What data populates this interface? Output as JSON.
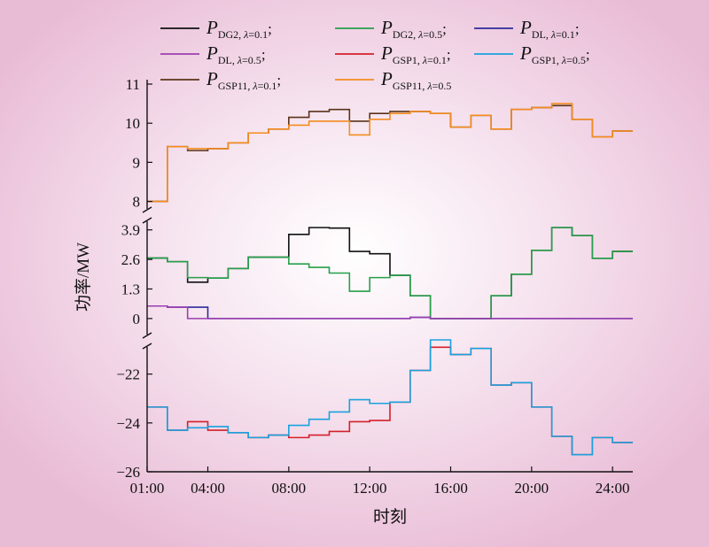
{
  "chart_data": {
    "type": "line",
    "step": true,
    "xlabel": "时刻",
    "ylabel": "功率/MW",
    "x_ticks": [
      "01:00",
      "04:00",
      "08:00",
      "12:00",
      "16:00",
      "20:00",
      "24:00"
    ],
    "x_tick_hours": [
      1,
      4,
      8,
      12,
      16,
      20,
      24
    ],
    "xlim": [
      1,
      25
    ],
    "y_axis_break": true,
    "panels": [
      {
        "id": "top",
        "ylim": [
          7.9,
          11
        ],
        "y_ticks": [
          "8",
          "9",
          "10",
          "11"
        ],
        "y_tick_values": [
          8,
          9,
          10,
          11
        ]
      },
      {
        "id": "mid",
        "ylim": [
          -0.2,
          4.2
        ],
        "y_ticks": [
          "0",
          "1.3",
          "2.6",
          "3.9"
        ],
        "y_tick_values": [
          0,
          1.3,
          2.6,
          3.9
        ]
      },
      {
        "id": "bot",
        "ylim": [
          -26,
          -20.6
        ],
        "y_ticks": [
          "−26",
          "−24",
          "−22"
        ],
        "y_tick_values": [
          -26,
          -24,
          -22
        ]
      }
    ],
    "hours": [
      1,
      2,
      3,
      4,
      5,
      6,
      7,
      8,
      9,
      10,
      11,
      12,
      13,
      14,
      15,
      16,
      17,
      18,
      19,
      20,
      21,
      22,
      23,
      24
    ],
    "series": [
      {
        "key": "dg2_01",
        "sym": "P",
        "sub": "DG2, ",
        "lam": "λ",
        "rest": "=0.1",
        "sep": ";",
        "color": "#111111",
        "panel": "mid",
        "values": [
          2.66,
          2.5,
          1.6,
          1.78,
          2.2,
          2.7,
          2.7,
          3.7,
          4.0,
          3.98,
          2.95,
          2.85,
          1.9,
          1.0,
          0,
          0,
          0,
          1.0,
          1.95,
          3.0,
          4.0,
          3.65,
          2.65,
          2.95
        ]
      },
      {
        "key": "dg2_05",
        "sym": "P",
        "sub": "DG2, ",
        "lam": "λ",
        "rest": "=0.5",
        "sep": ";",
        "color": "#27a04a",
        "panel": "mid",
        "values": [
          2.66,
          2.5,
          1.8,
          1.78,
          2.2,
          2.7,
          2.7,
          2.4,
          2.25,
          2.0,
          1.2,
          1.8,
          1.9,
          1.0,
          0,
          0,
          0,
          1.0,
          1.95,
          3.0,
          4.0,
          3.65,
          2.65,
          2.95
        ]
      },
      {
        "key": "dl_01",
        "sym": "P",
        "sub": "DL, ",
        "lam": "λ",
        "rest": "=0.1",
        "sep": ";",
        "color": "#2e2a9a",
        "panel": "mid",
        "values": [
          0.55,
          0.5,
          0.5,
          0,
          0,
          0,
          0,
          0,
          0,
          0,
          0,
          0,
          0,
          0.05,
          0,
          0,
          0,
          0,
          0,
          0,
          0,
          0,
          0,
          0
        ]
      },
      {
        "key": "dl_05",
        "sym": "P",
        "sub": "DL, ",
        "lam": "λ",
        "rest": "=0.5",
        "sep": ";",
        "color": "#9b3fb0",
        "panel": "mid",
        "values": [
          0.55,
          0.5,
          0,
          0,
          0,
          0,
          0,
          0,
          0,
          0,
          0,
          0,
          0,
          0.05,
          0,
          0,
          0,
          0,
          0,
          0,
          0,
          0,
          0,
          0
        ]
      },
      {
        "key": "gsp1_01",
        "sym": "P",
        "sub": "GSP1, ",
        "lam": "λ",
        "rest": "=0.1",
        "sep": ";",
        "color": "#d4202a",
        "panel": "bot",
        "values": [
          -23.35,
          -24.3,
          -23.95,
          -24.3,
          -24.4,
          -24.6,
          -24.5,
          -24.6,
          -24.5,
          -24.35,
          -23.95,
          -23.9,
          -23.15,
          -21.85,
          -20.9,
          -21.2,
          -20.95,
          -22.45,
          -22.35,
          -23.35,
          -24.55,
          -25.3,
          -24.6,
          -24.8
        ]
      },
      {
        "key": "gsp1_05",
        "sym": "P",
        "sub": "GSP1, ",
        "lam": "λ",
        "rest": "=0.5",
        "sep": ";",
        "color": "#1aa1de",
        "panel": "bot",
        "values": [
          -23.35,
          -24.3,
          -24.2,
          -24.15,
          -24.4,
          -24.6,
          -24.5,
          -24.1,
          -23.85,
          -23.55,
          -23.05,
          -23.2,
          -23.15,
          -21.85,
          -20.6,
          -21.2,
          -20.95,
          -22.45,
          -22.35,
          -23.35,
          -24.55,
          -25.3,
          -24.6,
          -24.8
        ]
      },
      {
        "key": "gsp11_01",
        "sym": "P",
        "sub": "GSP11, ",
        "lam": "λ",
        "rest": "=0.1",
        "sep": ";",
        "color": "#5a3318",
        "panel": "top",
        "values": [
          8.0,
          9.4,
          9.3,
          9.35,
          9.5,
          9.75,
          9.85,
          10.15,
          10.3,
          10.35,
          10.05,
          10.25,
          10.3,
          10.3,
          10.25,
          9.9,
          10.2,
          9.85,
          10.35,
          10.4,
          10.45,
          10.1,
          9.65,
          9.8
        ]
      },
      {
        "key": "gsp11_05",
        "sym": "P",
        "sub": "GSP11, ",
        "lam": "λ",
        "rest": "=0.5",
        "sep": "",
        "color": "#f48c1e",
        "panel": "top",
        "values": [
          8.0,
          9.4,
          9.35,
          9.35,
          9.5,
          9.75,
          9.85,
          9.95,
          10.05,
          10.05,
          9.7,
          10.1,
          10.25,
          10.3,
          10.25,
          9.9,
          10.2,
          9.85,
          10.35,
          10.4,
          10.5,
          10.1,
          9.65,
          9.8
        ]
      }
    ]
  }
}
